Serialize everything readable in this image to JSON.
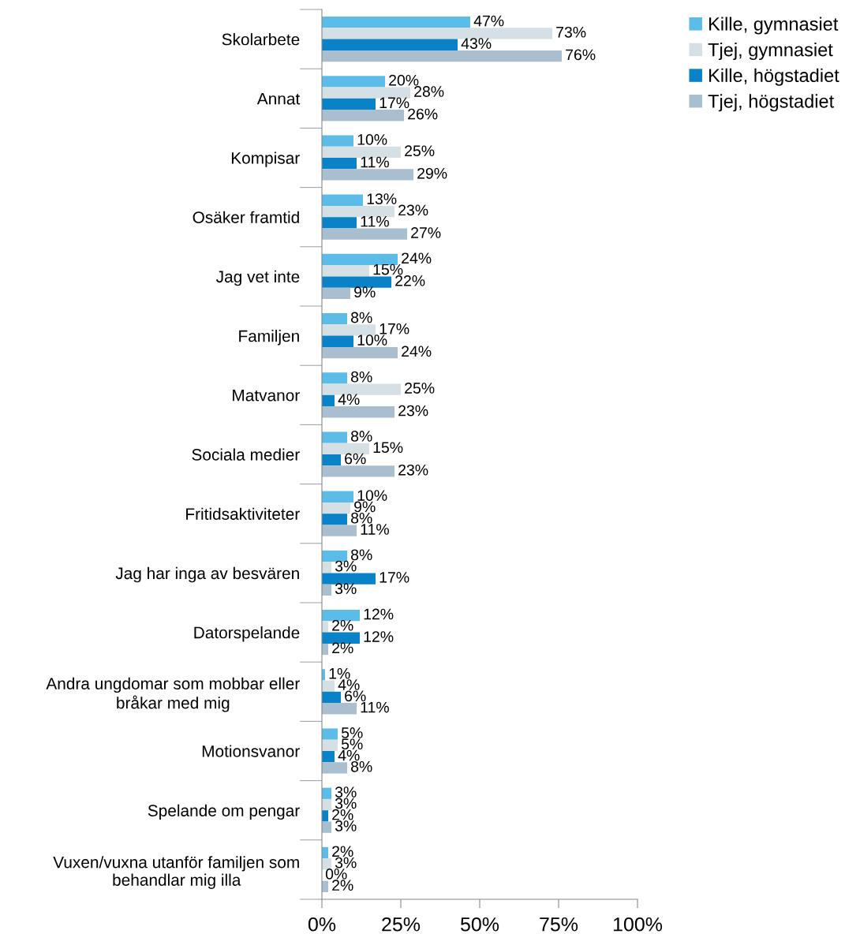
{
  "chart_data": {
    "type": "bar",
    "orientation": "horizontal",
    "categories": [
      "Skolarbete",
      "Annat",
      "Kompisar",
      "Osäker framtid",
      "Jag vet inte",
      "Familjen",
      "Matvanor",
      "Sociala medier",
      "Fritidsaktiviteter",
      "Jag har inga av besvären",
      "Datorspelande",
      "Andra ungdomar som mobbar eller\nbråkar med mig",
      "Motionsvanor",
      "Spelande om pengar",
      "Vuxen/vuxna utanför familjen som\nbehandlar mig illa"
    ],
    "series": [
      {
        "name": "Kille, gymnasiet",
        "color": "#5bbce8",
        "values": [
          47,
          20,
          10,
          13,
          24,
          8,
          8,
          8,
          10,
          8,
          12,
          1,
          5,
          3,
          2
        ],
        "value_labels": [
          "47%",
          "20%",
          "10%",
          "13%",
          "24%",
          "8%",
          "8%",
          "8%",
          "10%",
          "8%",
          "12%",
          "1%",
          "5%",
          "3%",
          "2%"
        ]
      },
      {
        "name": "Tjej, gymnasiet",
        "color": "#d5e0e5",
        "values": [
          73,
          28,
          25,
          23,
          15,
          17,
          25,
          15,
          9,
          3,
          2,
          4,
          5,
          3,
          3
        ],
        "value_labels": [
          "73%",
          "28%",
          "25%",
          "23%",
          "15%",
          "17%",
          "25%",
          "15%",
          "9%",
          "3%",
          "2%",
          "4%",
          "5%",
          "3%",
          "3%"
        ]
      },
      {
        "name": "Kille, högstadiet",
        "color": "#0a82c8",
        "values": [
          43,
          17,
          11,
          11,
          22,
          10,
          4,
          6,
          8,
          17,
          12,
          6,
          4,
          2,
          0
        ],
        "value_labels": [
          "43%",
          "17%",
          "11%",
          "11%",
          "22%",
          "10%",
          "4%",
          "6%",
          "8%",
          "17%",
          "12%",
          "6%",
          "4%",
          "2%",
          "0%"
        ]
      },
      {
        "name": "Tjej, högstadiet",
        "color": "#a9bfcf",
        "values": [
          76,
          26,
          29,
          27,
          9,
          24,
          23,
          23,
          11,
          3,
          2,
          11,
          8,
          3,
          2
        ],
        "value_labels": [
          "76%",
          "26%",
          "29%",
          "27%",
          "9%",
          "24%",
          "23%",
          "23%",
          "11%",
          "3%",
          "2%",
          "11%",
          "8%",
          "3%",
          "2%"
        ]
      }
    ],
    "xlim": [
      0,
      100
    ],
    "xticks": [
      {
        "value": 0,
        "label": "0%"
      },
      {
        "value": 25,
        "label": "25%"
      },
      {
        "value": 50,
        "label": "50%"
      },
      {
        "value": 75,
        "label": "75%"
      },
      {
        "value": 100,
        "label": "100%"
      }
    ],
    "grid": false,
    "legend": "top right"
  }
}
